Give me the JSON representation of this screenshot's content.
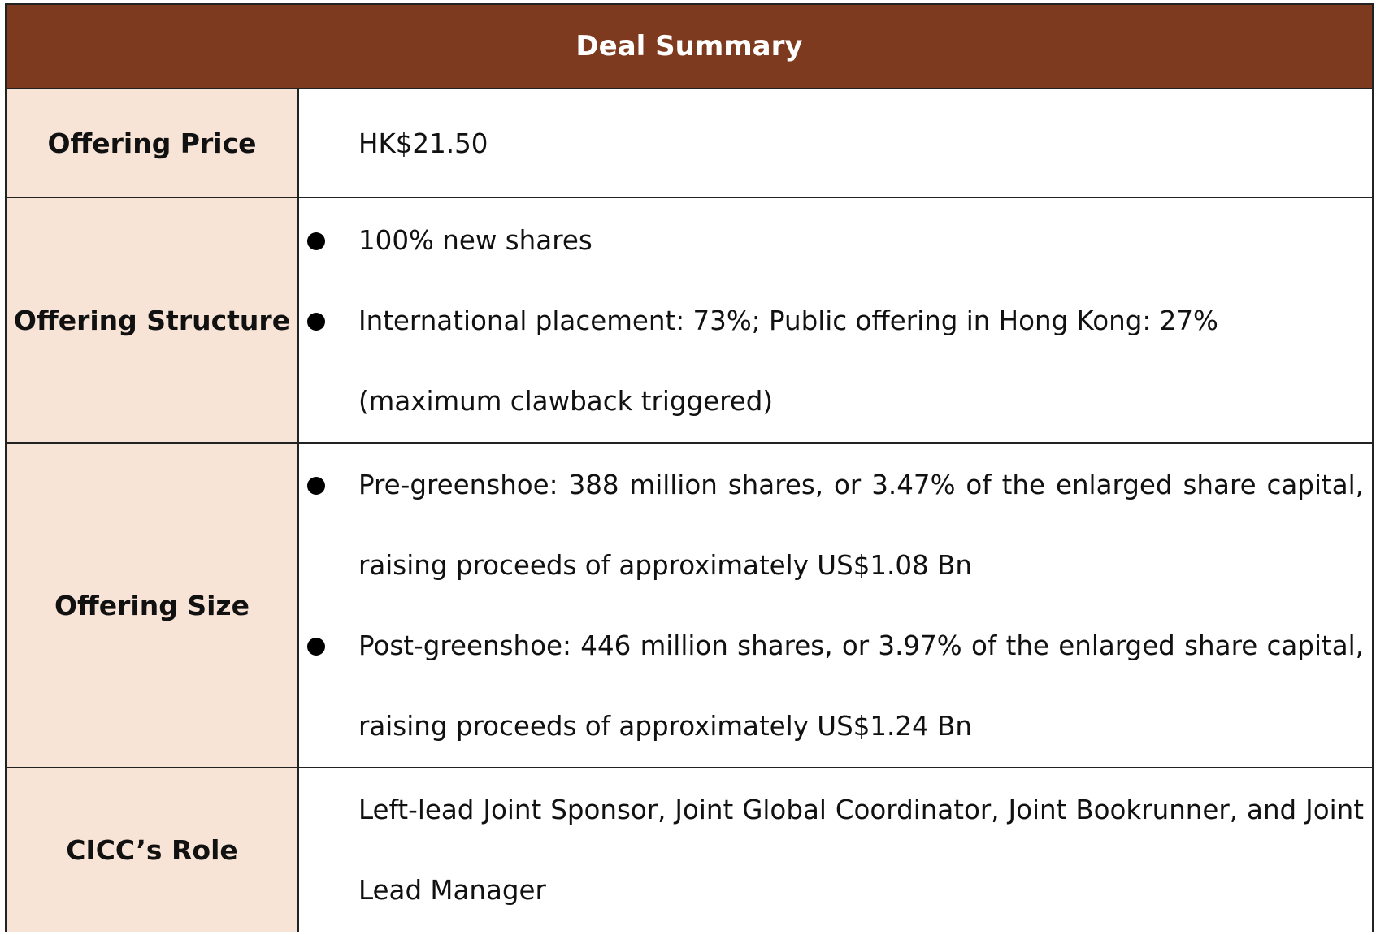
{
  "title": "Deal Summary",
  "rows": [
    {
      "label": "Offering Price",
      "items": [
        "HK$21.50"
      ]
    },
    {
      "label": "Offering Structure",
      "items": [
        "100% new shares",
        "International placement: 73%; Public offering in Hong Kong: 27% (maximum clawback triggered)"
      ]
    },
    {
      "label": "Offering Size",
      "items": [
        "Pre-greenshoe: 388 million shares, or 3.47% of the enlarged share capital, raising proceeds of approximately US$1.08 Bn",
        "Post-greenshoe: 446 million shares, or 3.97% of the enlarged share capital, raising proceeds of approximately US$1.24 Bn"
      ]
    },
    {
      "label": "CICC’s Role",
      "items": [
        "Left-lead Joint Sponsor, Joint Global Coordinator, Joint Bookrunner, and Joint Lead Manager"
      ]
    }
  ],
  "colors": {
    "header_bg": "#7d3a1f",
    "header_text": "#ffffff",
    "label_bg": "#f7e4d7",
    "border": "#222222"
  }
}
